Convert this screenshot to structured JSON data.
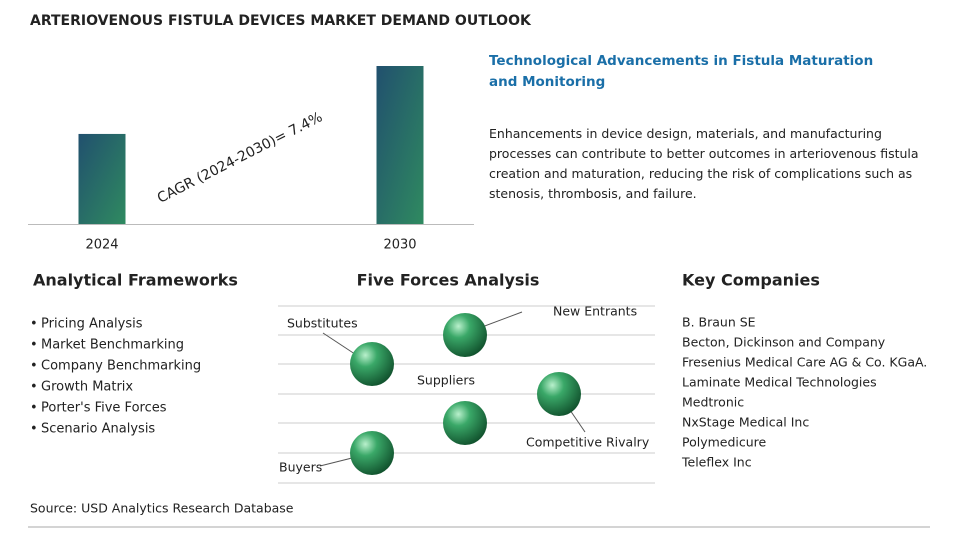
{
  "chart_data": {
    "type": "bar",
    "title": "ARTERIOVENOUS FISTULA DEVICES MARKET DEMAND OUTLOOK",
    "categories": [
      "2024",
      "2030"
    ],
    "values": [
      57,
      100
    ],
    "ylim": [
      0,
      100
    ],
    "colors": [
      "#21506e",
      "#2f8a60"
    ],
    "annotation": "CAGR (2024-2030)=  7.4%"
  },
  "highlight": {
    "title": "Technological Advancements in Fistula Maturation and Monitoring",
    "text": "Enhancements in device design, materials, and manufacturing processes can contribute to better outcomes in arteriovenous fistula creation and maturation, reducing the risk of complications such as stenosis, thrombosis, and failure."
  },
  "frameworks": {
    "title": "Analytical Frameworks",
    "items": [
      "Pricing Analysis",
      "Market Benchmarking",
      "Company Benchmarking",
      "Growth Matrix",
      "Porter's Five Forces",
      "Scenario Analysis"
    ]
  },
  "five_forces": {
    "title": "Five Forces Analysis",
    "labels": [
      "New Entrants",
      "Substitutes",
      "Competitive Rivalry",
      "Suppliers",
      "Buyers"
    ]
  },
  "companies": {
    "title": "Key Companies",
    "items": [
      "B. Braun SE",
      "Becton, Dickinson and Company",
      "Fresenius Medical Care AG & Co. KGaA.",
      "Laminate Medical Technologies",
      "Medtronic",
      "NxStage Medical Inc",
      "Polymedicure",
      "Teleflex Inc"
    ]
  },
  "source": "Source: USD Analytics Research Database"
}
